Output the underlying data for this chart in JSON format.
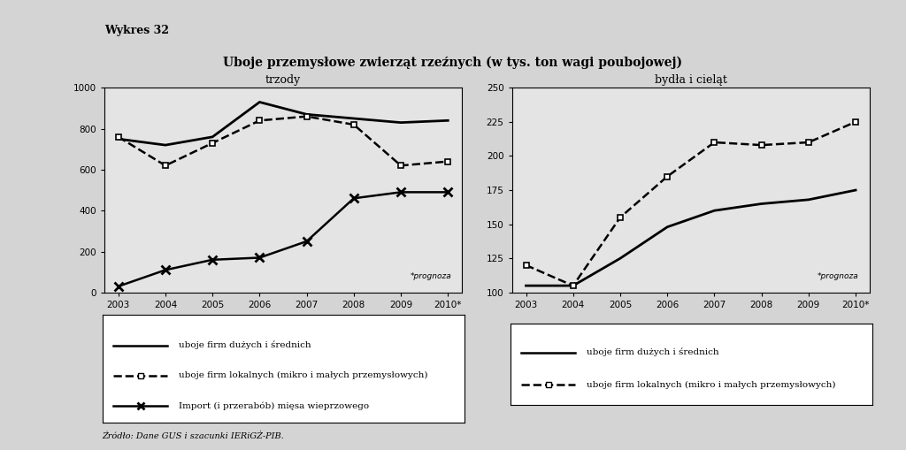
{
  "title_label": "Wykres 32",
  "main_title": "Uboje przemysłowe zwierząt rzeźnych (w tys. ton wagi poubojowej)",
  "left_subtitle": "trzody",
  "right_subtitle": "bydła i cieląt",
  "years_labels": [
    "2003",
    "2004",
    "2005",
    "2006",
    "2007",
    "2008",
    "2009",
    "2010*"
  ],
  "left": {
    "line1": {
      "label": "uboje firm dużych i średnich",
      "data": [
        750,
        720,
        760,
        930,
        870,
        850,
        830,
        840
      ]
    },
    "line2": {
      "label": "uboje firm lokalnych (mikro i małych przemysłowych)",
      "data": [
        760,
        620,
        730,
        840,
        860,
        820,
        620,
        640
      ]
    },
    "line3": {
      "label": "Import (i przerabób) mięsa wieprzowego",
      "data": [
        30,
        110,
        160,
        170,
        250,
        460,
        490,
        490
      ]
    },
    "ylim": [
      0,
      1000
    ],
    "yticks": [
      0,
      200,
      400,
      600,
      800,
      1000
    ]
  },
  "right": {
    "line1": {
      "label": "uboje firm dużych i średnich",
      "data": [
        105,
        105,
        125,
        148,
        160,
        165,
        168,
        175
      ]
    },
    "line2": {
      "label": "uboje firm lokalnych (mikro i małych przemysłowych)",
      "data": [
        120,
        105,
        155,
        185,
        210,
        208,
        210,
        225
      ]
    },
    "ylim": [
      100,
      250
    ],
    "yticks": [
      100,
      125,
      150,
      175,
      200,
      225,
      250
    ]
  },
  "source_text": "Źródło: Dane GUS i szacunki IERiGŻ-PIB.",
  "prognoza_text": "*prognoza",
  "bg_color": "#d4d4d4",
  "plot_bg_color": "#e4e4e4",
  "line_color": "#000000"
}
